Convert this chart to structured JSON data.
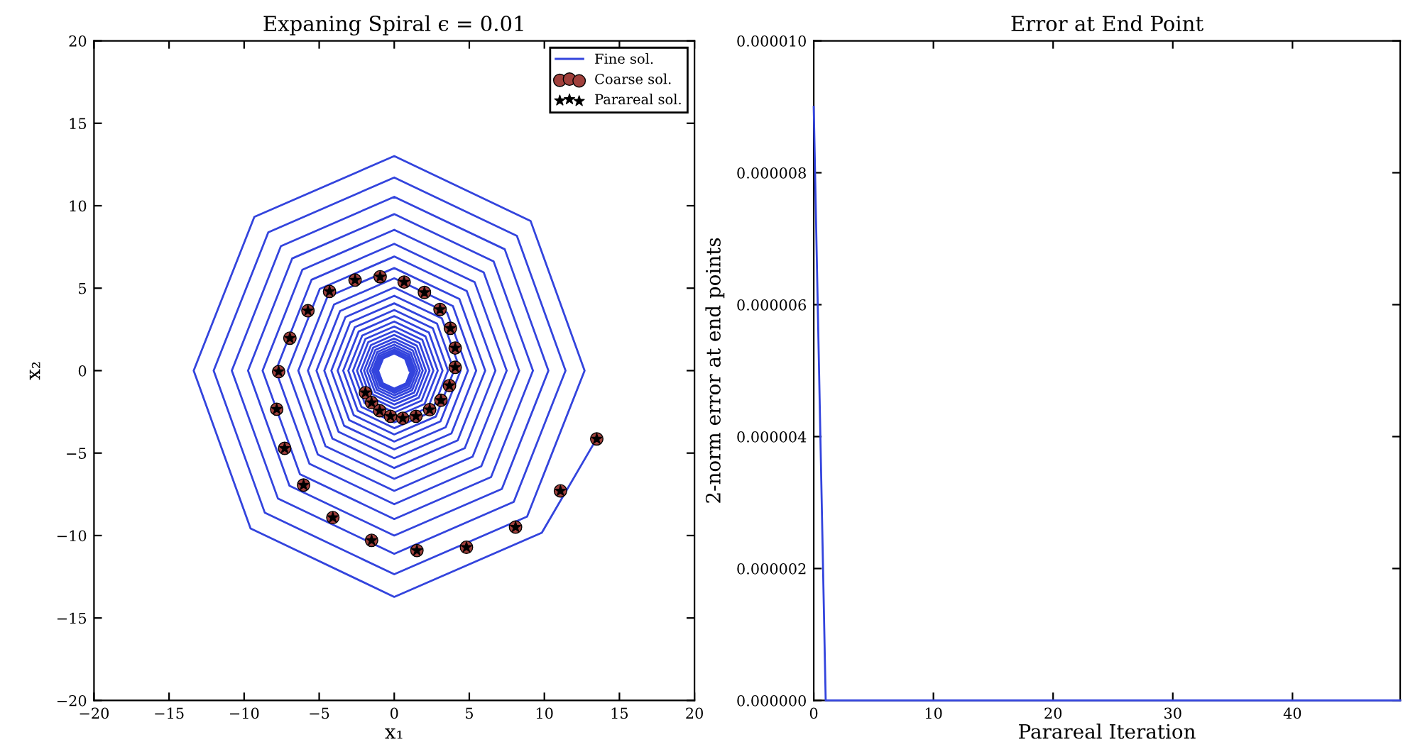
{
  "chart_data": [
    {
      "type": "line",
      "title": "Expaning Spiral ϵ = 0.01",
      "xlabel": "x₁",
      "ylabel": "x₂",
      "xlim": [
        -20,
        20
      ],
      "ylim": [
        -20,
        20
      ],
      "xticks": [
        {
          "value": -20,
          "label": "−20"
        },
        {
          "value": -15,
          "label": "−15"
        },
        {
          "value": -10,
          "label": "−10"
        },
        {
          "value": -5,
          "label": "−5"
        },
        0,
        5,
        10,
        15,
        20
      ],
      "yticks": [
        {
          "value": -20,
          "label": "−20"
        },
        {
          "value": -15,
          "label": "−15"
        },
        {
          "value": -10,
          "label": "−10"
        },
        {
          "value": -5,
          "label": "−5"
        },
        0,
        5,
        10,
        15,
        20
      ],
      "grid": false,
      "legend": "top right",
      "series": [
        {
          "name": "Fine sol.",
          "type": "line",
          "color": "#3344dd",
          "marker": "none",
          "line_style": "solid",
          "x": [
            1.01,
            0.72,
            0,
            -0.74,
            -1.07,
            -0.76,
            0,
            0.78,
            1.12,
            0.8,
            0,
            -0.83,
            -1.18,
            -0.85,
            0,
            0.87,
            1.25,
            0.89,
            0,
            -0.92,
            -1.32,
            -0.94,
            0,
            0.97,
            1.39,
            0.99,
            0,
            -1.02,
            -1.46,
            -1.05,
            0,
            1.08,
            1.54,
            1.1,
            0,
            -1.13,
            -1.62,
            -1.16,
            0,
            1.19,
            1.71,
            1.23,
            0,
            -1.26,
            -1.81,
            -1.29,
            0,
            1.33,
            1.9,
            1.36,
            0,
            -1.4,
            -2.01,
            -1.44,
            0,
            1.48,
            2.11,
            1.51,
            0,
            -1.55,
            -2.23,
            -1.6,
            0,
            1.64,
            2.35,
            1.68,
            0,
            -1.73,
            -2.48,
            -1.77,
            0,
            1.82,
            2.61,
            1.87,
            0,
            -1.92,
            -2.75,
            -1.97,
            0,
            2.02,
            2.9,
            2.08,
            0,
            -2.13,
            -3.06,
            -2.19,
            0,
            2.25,
            3.22,
            2.31,
            0,
            -2.37,
            -3.4,
            -2.43,
            0,
            2.5,
            3.58,
            2.57,
            0,
            -2.63,
            -3.77,
            -2.7,
            0,
            2.78,
            3.98,
            2.85,
            0,
            -2.93,
            -4.19,
            -3.0,
            0,
            3.08,
            4.42,
            3.17,
            0,
            -3.25,
            -4.66,
            -3.34,
            0,
            3.43,
            4.91,
            3.52,
            0,
            -3.61,
            -5.18,
            -3.71,
            0,
            3.81,
            5.46,
            3.91,
            0,
            -4.01,
            -5.75,
            -4.12,
            0,
            4.23,
            6.06,
            4.34,
            0,
            -4.46,
            -6.39,
            -4.58,
            0,
            4.7,
            6.74,
            4.83,
            0,
            -4.96,
            -7.1,
            -5.09,
            0,
            5.22,
            7.49,
            5.36,
            0,
            -5.51,
            -7.89,
            -5.65,
            0,
            5.8,
            8.32,
            5.96,
            0,
            -6.12,
            -8.77,
            -6.28,
            0,
            6.45,
            9.24,
            6.62,
            0,
            -6.8,
            -9.74,
            -6.98,
            0,
            7.17,
            10.27,
            7.36,
            0,
            -7.55,
            -10.82,
            -7.75,
            0,
            7.96,
            11.41,
            8.17,
            0,
            -8.39,
            -12.03,
            -8.62,
            0,
            8.85,
            12.68,
            9.08,
            0,
            -9.32,
            -13.36,
            -9.57,
            0,
            9.83,
            13.5
          ],
          "values": [
            0,
            0.72,
            1.04,
            0.74,
            0,
            -0.76,
            -1.09,
            -0.78,
            0,
            0.8,
            1.15,
            0.83,
            0,
            -0.85,
            -1.22,
            -0.87,
            0,
            0.89,
            1.28,
            0.92,
            0,
            -0.94,
            -1.35,
            -0.97,
            0,
            0.99,
            1.42,
            1.02,
            0,
            -1.05,
            -1.5,
            -1.08,
            0,
            1.1,
            1.58,
            1.13,
            0,
            -1.16,
            -1.67,
            -1.19,
            0,
            1.23,
            1.76,
            1.26,
            0,
            -1.29,
            -1.85,
            -1.33,
            0,
            1.36,
            1.95,
            1.4,
            0,
            -1.44,
            -2.06,
            -1.48,
            0,
            1.51,
            2.17,
            1.55,
            0,
            -1.6,
            -2.29,
            -1.64,
            0,
            1.68,
            2.41,
            1.73,
            0,
            -1.77,
            -2.54,
            -1.82,
            0,
            1.87,
            2.68,
            1.92,
            0,
            -1.97,
            -2.82,
            -2.02,
            0,
            2.08,
            2.98,
            2.13,
            0,
            -2.19,
            -3.14,
            -2.25,
            0,
            2.31,
            3.31,
            2.37,
            0,
            -2.43,
            -3.49,
            -2.5,
            0,
            2.57,
            3.68,
            2.63,
            0,
            -2.7,
            -3.87,
            -2.78,
            0,
            2.85,
            4.08,
            2.93,
            0,
            -3.0,
            -4.3,
            -3.08,
            0,
            3.17,
            4.54,
            3.25,
            0,
            -3.34,
            -4.78,
            -3.43,
            0,
            3.52,
            5.04,
            3.61,
            0,
            -3.71,
            -5.31,
            -3.81,
            0,
            3.91,
            5.6,
            4.01,
            0,
            -4.12,
            -5.9,
            -4.23,
            0,
            4.34,
            6.22,
            4.46,
            0,
            -4.58,
            -6.56,
            -4.7,
            0,
            4.83,
            6.92,
            4.96,
            0,
            -5.09,
            -7.29,
            -5.22,
            0,
            5.36,
            7.69,
            5.51,
            0,
            -5.65,
            -8.1,
            -5.8,
            0,
            5.96,
            8.54,
            6.12,
            0,
            -6.28,
            -9.0,
            -6.45,
            0,
            6.62,
            9.49,
            6.8,
            0,
            -6.98,
            -10.0,
            -7.17,
            0,
            7.36,
            10.54,
            7.55,
            0,
            -7.75,
            -11.11,
            -7.96,
            0,
            8.17,
            11.71,
            8.39,
            0,
            -8.62,
            -12.35,
            -8.85,
            0,
            9.08,
            13.01,
            9.32,
            0,
            -9.57,
            -13.72,
            -9.83,
            -4.1
          ]
        },
        {
          "name": "Coarse sol.",
          "type": "scatter",
          "color": "#a0403c",
          "marker": "circle",
          "x": [
            -1.92,
            -1.51,
            -0.97,
            -0.25,
            0.57,
            1.45,
            2.36,
            3.11,
            3.68,
            4.06,
            4.06,
            3.74,
            3.05,
            2.01,
            0.66,
            -0.94,
            -2.61,
            -4.31,
            -5.75,
            -6.95,
            -7.7,
            -7.83,
            -7.3,
            -6.04,
            -4.09,
            -1.51,
            1.51,
            4.81,
            8.08,
            11.07,
            13.49
          ],
          "values": [
            -1.34,
            -1.94,
            -2.43,
            -2.77,
            -2.89,
            -2.77,
            -2.37,
            -1.8,
            -0.91,
            0.2,
            1.37,
            2.57,
            3.71,
            4.74,
            5.37,
            5.69,
            5.49,
            4.8,
            3.63,
            1.97,
            -0.06,
            -2.34,
            -4.71,
            -6.94,
            -8.91,
            -10.29,
            -10.91,
            -10.71,
            -9.49,
            -7.29,
            -4.14
          ]
        },
        {
          "name": "Parareal sol.",
          "type": "scatter",
          "color": "#000000",
          "marker": "star",
          "x": [
            -1.92,
            -1.51,
            -0.97,
            -0.25,
            0.57,
            1.45,
            2.36,
            3.11,
            3.68,
            4.06,
            4.06,
            3.74,
            3.05,
            2.01,
            0.66,
            -0.94,
            -2.61,
            -4.31,
            -5.75,
            -6.95,
            -7.7,
            -7.83,
            -7.3,
            -6.04,
            -4.09,
            -1.51,
            1.51,
            4.81,
            8.08,
            11.07,
            13.49
          ],
          "values": [
            -1.34,
            -1.94,
            -2.43,
            -2.77,
            -2.89,
            -2.77,
            -2.37,
            -1.8,
            -0.91,
            0.2,
            1.37,
            2.57,
            3.71,
            4.74,
            5.37,
            5.69,
            5.49,
            4.8,
            3.63,
            1.97,
            -0.06,
            -2.34,
            -4.71,
            -6.94,
            -8.91,
            -10.29,
            -10.91,
            -10.71,
            -9.49,
            -7.29,
            -4.14
          ]
        }
      ]
    },
    {
      "type": "line",
      "title": "Error at End Point",
      "xlabel": "Parareal Iteration",
      "ylabel": "2-norm error at end points",
      "xlim": [
        0,
        49
      ],
      "ylim": [
        0,
        1e-05
      ],
      "xticks": [
        0,
        10,
        20,
        30,
        40
      ],
      "yticks": [
        {
          "value": 0,
          "label": "0.000000"
        },
        {
          "value": 2e-06,
          "label": "0.000002"
        },
        {
          "value": 4e-06,
          "label": "0.000004"
        },
        {
          "value": 6e-06,
          "label": "0.000006"
        },
        {
          "value": 8e-06,
          "label": "0.000008"
        },
        {
          "value": 1e-05,
          "label": "0.000010"
        }
      ],
      "grid": false,
      "series": [
        {
          "type": "line",
          "color": "#3344dd",
          "marker": "none",
          "line_style": "solid",
          "x": [
            0,
            1,
            2,
            3,
            4,
            5,
            6,
            7,
            8,
            9,
            10,
            11,
            12,
            13,
            14,
            15,
            16,
            17,
            18,
            19,
            20,
            21,
            22,
            23,
            24,
            25,
            26,
            27,
            28,
            29,
            30,
            31,
            32,
            33,
            34,
            35,
            36,
            37,
            38,
            39,
            40,
            41,
            42,
            43,
            44,
            45,
            46,
            47,
            48,
            49
          ],
          "values": [
            9e-06,
            0,
            0,
            0,
            0,
            0,
            0,
            0,
            0,
            0,
            0,
            0,
            0,
            0,
            0,
            0,
            0,
            0,
            0,
            0,
            0,
            0,
            0,
            0,
            0,
            0,
            0,
            0,
            0,
            0,
            0,
            0,
            0,
            0,
            0,
            0,
            0,
            0,
            0,
            0,
            0,
            0,
            0,
            0,
            0,
            0,
            0,
            0,
            0,
            0
          ]
        }
      ]
    }
  ]
}
